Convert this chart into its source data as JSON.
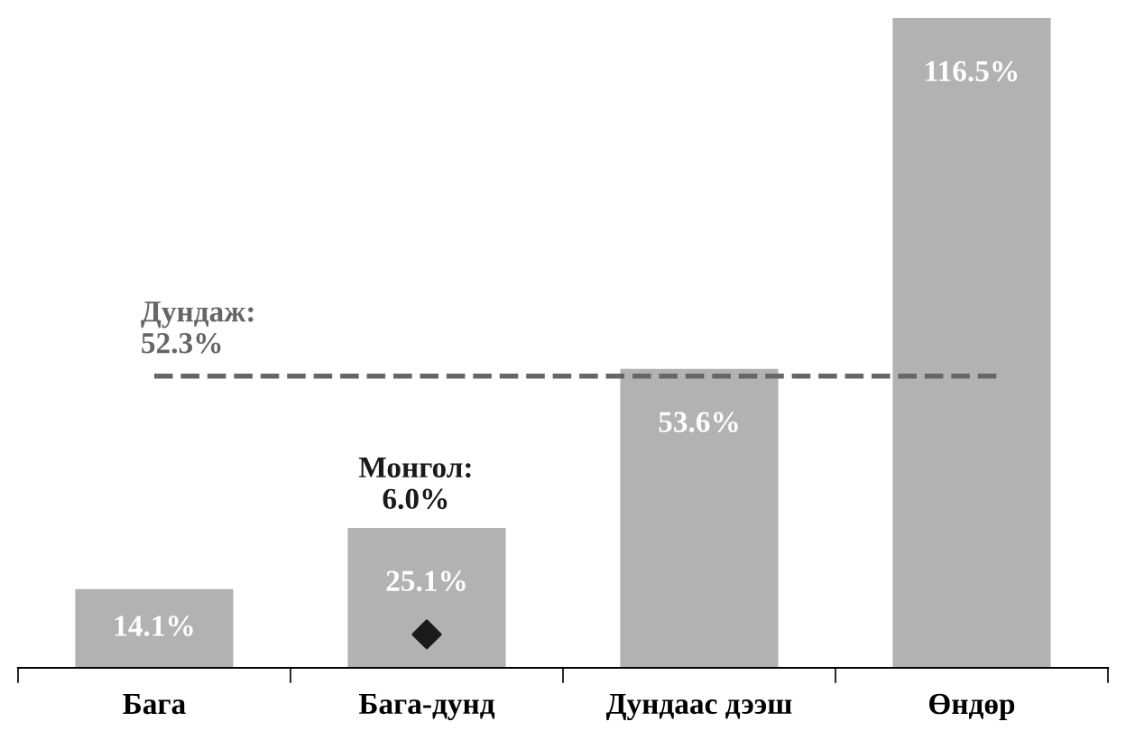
{
  "chart_data": {
    "type": "bar",
    "categories": [
      "Бага",
      "Бага-дунд",
      "Дундаас дээш",
      "Өндөр"
    ],
    "series": [
      {
        "color": "#b2b2b2",
        "values": [
          14.1,
          25.1,
          53.6,
          116.5
        ],
        "value_labels": [
          "14.1%",
          "25.1%",
          "53.6%",
          "116.5%"
        ]
      },
      {
        "type": "scatter",
        "color": "#1a1a1a",
        "x": [
          "Бага-дунд"
        ],
        "values": [
          6.0
        ],
        "marker": "diamond"
      }
    ],
    "ref_lines": [
      {
        "axis": "y",
        "value": 52.3,
        "label": "Дундаж:\n52.3%",
        "color": "#666666",
        "line_style": "dashed"
      }
    ],
    "annotations": [
      "Монгол:\n6.0%"
    ],
    "grid": false,
    "legend": false
  }
}
